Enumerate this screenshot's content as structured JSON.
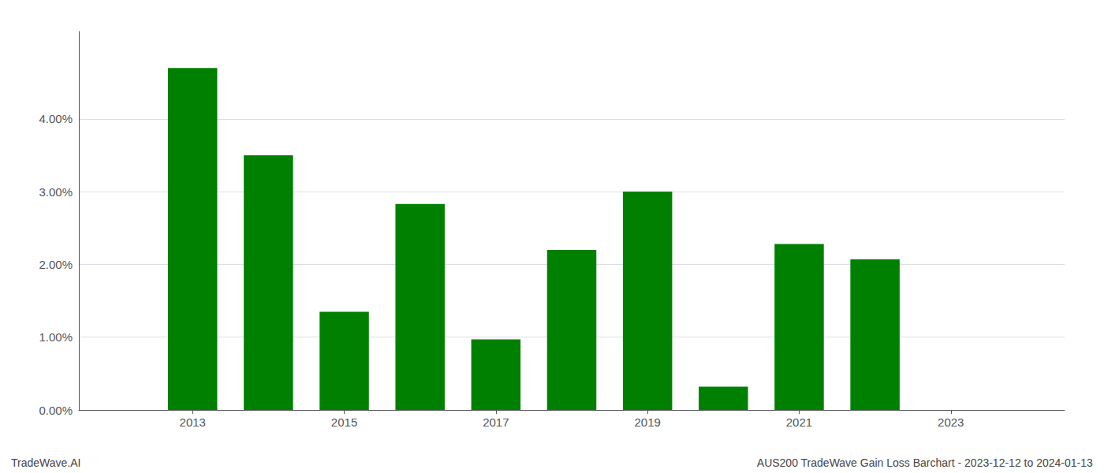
{
  "chart_data": {
    "type": "bar",
    "x": [
      2013,
      2014,
      2015,
      2016,
      2017,
      2018,
      2019,
      2020,
      2021,
      2022,
      2023
    ],
    "values": [
      0.047,
      0.035,
      0.0135,
      0.0283,
      0.0097,
      0.022,
      0.03,
      0.0032,
      0.0228,
      0.0207,
      0.0
    ],
    "color": "#008000",
    "xlim": [
      2011.5,
      2024.5
    ],
    "xticks": [
      2013,
      2015,
      2017,
      2019,
      2021,
      2023
    ],
    "ylim": [
      0.0,
      0.052
    ],
    "yticks": [
      {
        "value": 0.0,
        "label": "0.00%"
      },
      {
        "value": 0.01,
        "label": "1.00%"
      },
      {
        "value": 0.02,
        "label": "2.00%"
      },
      {
        "value": 0.03,
        "label": "3.00%"
      },
      {
        "value": 0.04,
        "label": "4.00%"
      }
    ],
    "grid": true,
    "annotations": [
      "TradeWave.AI",
      "AUS200 TradeWave Gain Loss Barchart - 2023-12-12 to 2024-01-13"
    ]
  }
}
